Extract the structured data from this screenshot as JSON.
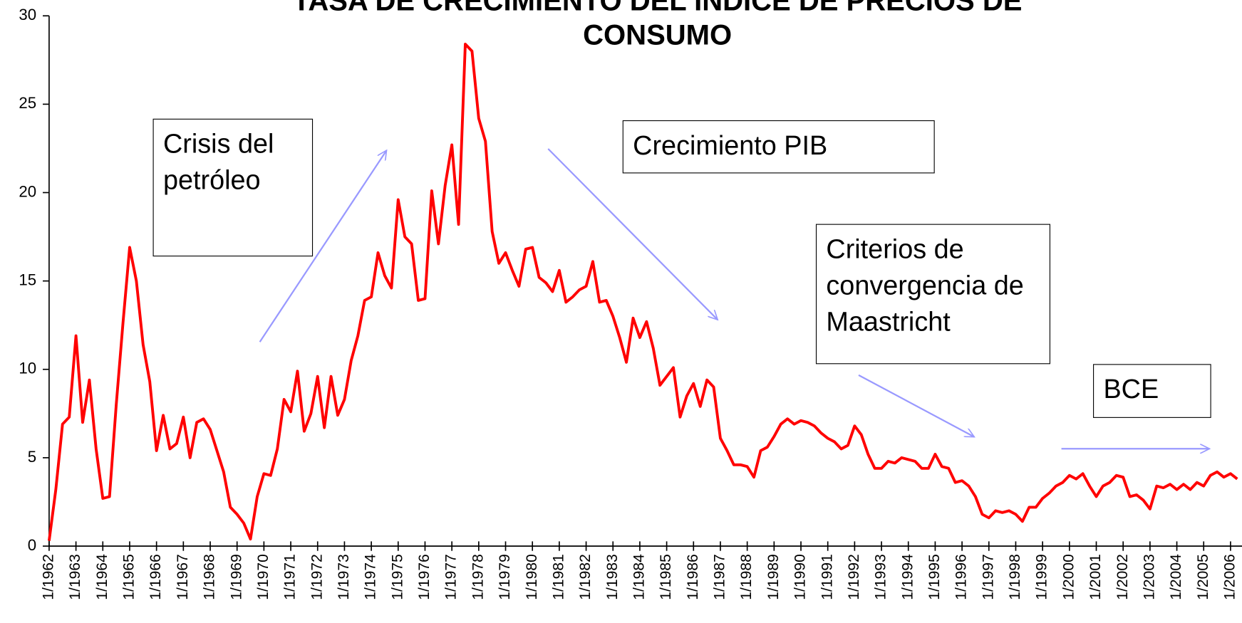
{
  "chart_data": {
    "type": "line",
    "title": "TASA DE CRECIMIENTO DEL ÍNDICE DE PRECIOS DE CONSUMO",
    "color": "#ff0000",
    "ylim": [
      0,
      30
    ],
    "yticks": [
      0,
      5,
      10,
      15,
      20,
      25,
      30
    ],
    "annotations": [
      "Crisis del petróleo",
      "Crecimiento PIB",
      "Criterios de convergencia de Maastricht",
      "BCE"
    ],
    "categories": [
      "1/1962",
      null,
      null,
      null,
      "1/1963",
      null,
      null,
      null,
      "1/1964",
      null,
      null,
      null,
      "1/1965",
      null,
      null,
      null,
      "1/1966",
      null,
      null,
      null,
      "1/1967",
      null,
      null,
      null,
      "1/1968",
      null,
      null,
      null,
      "1/1969",
      null,
      null,
      null,
      "1/1970",
      null,
      null,
      null,
      "1/1971",
      null,
      null,
      null,
      "1/1972",
      null,
      null,
      null,
      "1/1973",
      null,
      null,
      null,
      "1/1974",
      null,
      null,
      null,
      "1/1975",
      null,
      null,
      null,
      "1/1976",
      null,
      null,
      null,
      "1/1977",
      null,
      null,
      null,
      "1/1978",
      null,
      null,
      null,
      "1/1979",
      null,
      null,
      null,
      "1/1980",
      null,
      null,
      null,
      "1/1981",
      null,
      null,
      null,
      "1/1982",
      null,
      null,
      null,
      "1/1983",
      null,
      null,
      null,
      "1/1984",
      null,
      null,
      null,
      "1/1985",
      null,
      null,
      null,
      "1/1986",
      null,
      null,
      null,
      "1/1987",
      null,
      null,
      null,
      "1/1988",
      null,
      null,
      null,
      "1/1989",
      null,
      null,
      null,
      "1/1990",
      null,
      null,
      null,
      "1/1991",
      null,
      null,
      null,
      "1/1992",
      null,
      null,
      null,
      "1/1993",
      null,
      null,
      null,
      "1/1994",
      null,
      null,
      null,
      "1/1995",
      null,
      null,
      null,
      "1/1996",
      null,
      null,
      null,
      "1/1997",
      null,
      null,
      null,
      "1/1998",
      null,
      null,
      null,
      "1/1999",
      null,
      null,
      null,
      "1/2000",
      null,
      null,
      null,
      "1/2001",
      null,
      null,
      null,
      "1/2002",
      null,
      null,
      null,
      "1/2003",
      null,
      null,
      null,
      "1/2004",
      null,
      null,
      null,
      "1/2005",
      null,
      null,
      null,
      "1/2006",
      null
    ],
    "values": [
      0.3,
      3.2,
      6.9,
      7.3,
      11.9,
      7.0,
      9.4,
      5.5,
      2.7,
      2.8,
      8.0,
      12.6,
      16.9,
      15.0,
      11.4,
      9.3,
      5.4,
      7.4,
      5.5,
      5.8,
      7.3,
      5.0,
      7.0,
      7.2,
      6.6,
      5.4,
      4.2,
      2.2,
      1.8,
      1.3,
      0.4,
      2.8,
      4.1,
      4.0,
      5.5,
      8.3,
      7.6,
      9.9,
      6.5,
      7.5,
      9.6,
      6.7,
      9.6,
      7.4,
      8.3,
      10.5,
      11.9,
      13.9,
      14.1,
      16.6,
      15.3,
      14.6,
      19.6,
      17.5,
      17.1,
      13.9,
      14.0,
      20.1,
      17.1,
      20.4,
      22.7,
      18.2,
      28.4,
      28.0,
      24.2,
      22.9,
      17.8,
      16.0,
      16.6,
      15.6,
      14.7,
      16.8,
      16.9,
      15.2,
      14.9,
      14.4,
      15.6,
      13.8,
      14.1,
      14.5,
      14.7,
      16.1,
      13.8,
      13.9,
      13.0,
      11.8,
      10.4,
      12.9,
      11.8,
      12.7,
      11.2,
      9.1,
      9.6,
      10.1,
      7.3,
      8.5,
      9.2,
      7.9,
      9.4,
      9.0,
      6.1,
      5.4,
      4.6,
      4.6,
      4.5,
      3.9,
      5.4,
      5.6,
      6.2,
      6.9,
      7.2,
      6.9,
      7.1,
      7.0,
      6.8,
      6.4,
      6.1,
      5.9,
      5.5,
      5.7,
      6.8,
      6.3,
      5.2,
      4.4,
      4.4,
      4.8,
      4.7,
      5.0,
      4.9,
      4.8,
      4.4,
      4.4,
      5.2,
      4.5,
      4.4,
      3.6,
      3.7,
      3.4,
      2.8,
      1.8,
      1.6,
      2.0,
      1.9,
      2.0,
      1.8,
      1.4,
      2.2,
      2.2,
      2.7,
      3.0,
      3.4,
      3.6,
      4.0,
      3.8,
      4.1,
      3.4,
      2.8,
      3.4,
      3.6,
      4.0,
      3.9,
      2.8,
      2.9,
      2.6,
      2.1,
      3.4,
      3.3,
      3.5,
      3.2,
      3.5,
      3.2,
      3.6,
      3.4,
      4.0,
      4.2,
      3.9,
      4.1,
      3.8
    ]
  }
}
